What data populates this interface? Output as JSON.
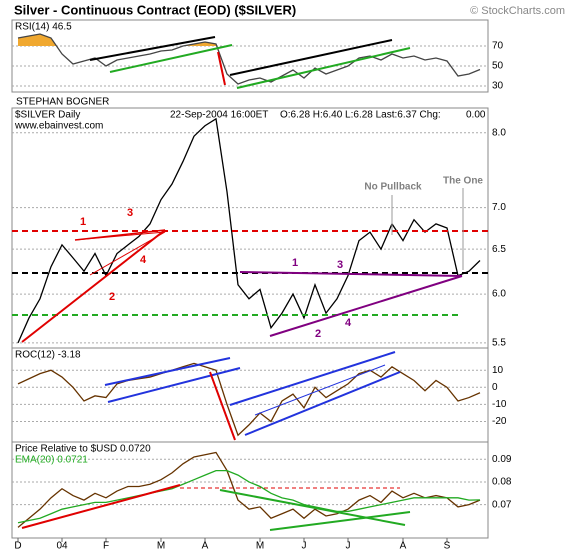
{
  "header": {
    "title": "Silver - Continuous Contract (EOD) ($SILVER)",
    "watermark": "© StockCharts.com",
    "author": "STEPHAN BOGNER"
  },
  "chart_data": [
    {
      "type": "line",
      "title": "RSI(14) 46.5",
      "color": "#444444",
      "fill_above": 70,
      "fill_color": "#f0a830",
      "ylim": [
        24,
        96
      ],
      "yticks": [
        30,
        50,
        70
      ],
      "values": [
        78,
        80,
        82,
        78,
        62,
        52,
        55,
        58,
        50,
        56,
        58,
        60,
        62,
        65,
        66,
        70,
        72,
        74,
        72,
        42,
        32,
        36,
        38,
        34,
        40,
        46,
        38,
        48,
        42,
        46,
        50,
        58,
        60,
        56,
        62,
        58,
        60,
        56,
        58,
        55,
        40,
        42,
        46.5
      ]
    },
    {
      "type": "line",
      "title": "$SILVER Daily",
      "subtitle": "www.ebainvest.com",
      "date": "22-Sep-2004 16:00ET",
      "quote": "O:6.28 H:6.40 L:6.28 Last:6.37 Chg:",
      "change": "0.00",
      "log_scale": true,
      "color": "#000000",
      "ylim": [
        5.45,
        8.36
      ],
      "yticks": [
        5.5,
        {
          "value": 6,
          "label": "6.0"
        },
        6.5,
        {
          "value": 7,
          "label": "7.0"
        },
        {
          "value": 8,
          "label": "8.0"
        }
      ],
      "values": [
        5.5,
        5.75,
        5.95,
        6.3,
        6.55,
        6.4,
        6.25,
        6.45,
        6.2,
        6.45,
        6.55,
        6.65,
        6.8,
        7.1,
        7.3,
        7.6,
        7.95,
        8.1,
        8.2,
        7.2,
        6.1,
        5.95,
        6.05,
        5.65,
        5.8,
        6.0,
        5.75,
        6.1,
        5.8,
        5.95,
        6.2,
        6.6,
        6.7,
        6.5,
        6.8,
        6.6,
        6.85,
        6.7,
        6.8,
        6.75,
        6.2,
        6.25,
        6.37
      ],
      "annotations": [
        {
          "text": "1",
          "color": "#e00000"
        },
        {
          "text": "3",
          "color": "#e00000"
        },
        {
          "text": "4",
          "color": "#e00000"
        },
        {
          "text": "2",
          "color": "#e00000"
        },
        {
          "text": "1",
          "color": "#800080"
        },
        {
          "text": "3",
          "color": "#800080"
        },
        {
          "text": "2",
          "color": "#800080"
        },
        {
          "text": "4",
          "color": "#800080"
        },
        {
          "text": "No Pullback",
          "color": "#808080"
        },
        {
          "text": "The One",
          "color": "#808080"
        }
      ]
    },
    {
      "type": "line",
      "title": "ROC(12) -3.18",
      "color": "#663300",
      "ylim": [
        -32,
        23
      ],
      "yticks": [
        -20,
        -10,
        0,
        10
      ],
      "values": [
        2,
        5,
        8,
        10,
        6,
        0,
        -8,
        -5,
        -6,
        2,
        4,
        5,
        6,
        8,
        10,
        12,
        14,
        12,
        10,
        -10,
        -28,
        -22,
        -15,
        -20,
        -8,
        -4,
        -12,
        0,
        -6,
        -2,
        2,
        8,
        10,
        6,
        12,
        8,
        4,
        -2,
        4,
        0,
        -8,
        -6,
        -3.18
      ]
    },
    {
      "type": "line",
      "ylim": [
        0.0553,
        0.0976
      ],
      "yticks": [
        0.07,
        0.08,
        0.09
      ],
      "categories": [
        "D",
        null,
        null,
        null,
        "04",
        null,
        null,
        null,
        "F",
        null,
        null,
        null,
        null,
        "M",
        null,
        null,
        null,
        "A",
        null,
        null,
        null,
        null,
        "M",
        null,
        null,
        null,
        "J",
        null,
        null,
        null,
        "J",
        null,
        null,
        null,
        null,
        "A",
        null,
        null,
        null,
        "S",
        null,
        null,
        null
      ],
      "series": [
        {
          "name": "Price Relative to $USD 0.0720",
          "color": "#663300",
          "values": [
            0.06,
            0.064,
            0.068,
            0.073,
            0.077,
            0.074,
            0.072,
            0.075,
            0.073,
            0.076,
            0.078,
            0.078,
            0.079,
            0.081,
            0.084,
            0.088,
            0.091,
            0.092,
            0.093,
            0.085,
            0.072,
            0.068,
            0.069,
            0.064,
            0.066,
            0.068,
            0.064,
            0.068,
            0.065,
            0.066,
            0.068,
            0.072,
            0.074,
            0.071,
            0.076,
            0.073,
            0.075,
            0.073,
            0.074,
            0.073,
            0.069,
            0.07,
            0.072
          ]
        },
        {
          "name": "EMA(20) 0.0721",
          "color": "#22aa22",
          "values": [
            0.062,
            0.063,
            0.064,
            0.066,
            0.068,
            0.069,
            0.07,
            0.071,
            0.071,
            0.072,
            0.073,
            0.074,
            0.075,
            0.076,
            0.077,
            0.079,
            0.081,
            0.083,
            0.085,
            0.085,
            0.083,
            0.08,
            0.078,
            0.075,
            0.073,
            0.072,
            0.07,
            0.069,
            0.068,
            0.067,
            0.067,
            0.068,
            0.069,
            0.07,
            0.071,
            0.072,
            0.073,
            0.073,
            0.073,
            0.073,
            0.073,
            0.072,
            0.0721
          ]
        }
      ]
    }
  ]
}
